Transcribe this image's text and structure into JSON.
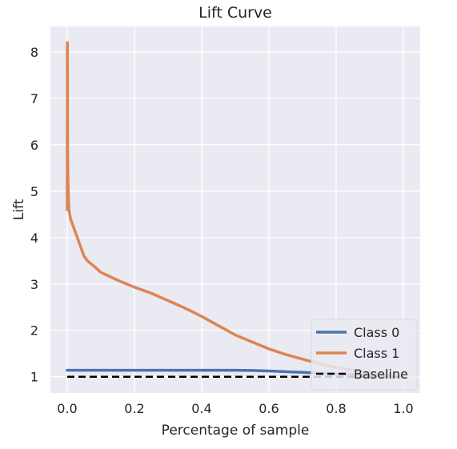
{
  "chart_data": {
    "type": "line",
    "title": "Lift Curve",
    "xlabel": "Percentage of sample",
    "ylabel": "Lift",
    "xlim": [
      -0.05,
      1.05
    ],
    "ylim": [
      0.65,
      8.55
    ],
    "xticks": [
      0.0,
      0.2,
      0.4,
      0.6,
      0.8,
      1.0
    ],
    "xtick_labels": [
      "0.0",
      "0.2",
      "0.4",
      "0.6",
      "0.8",
      "1.0"
    ],
    "yticks": [
      1,
      2,
      3,
      4,
      5,
      6,
      7,
      8
    ],
    "ytick_labels": [
      "1",
      "2",
      "3",
      "4",
      "5",
      "6",
      "7",
      "8"
    ],
    "grid": true,
    "legend_position": "bottom-right",
    "background": "#EAEAF2",
    "series": [
      {
        "name": "Class 0",
        "color": "#4C72B0",
        "style": "solid",
        "x": [
          0.0,
          0.1,
          0.2,
          0.3,
          0.4,
          0.5,
          0.55,
          0.6,
          0.65,
          0.7,
          0.75,
          0.8,
          0.85,
          0.9,
          0.95,
          1.0
        ],
        "y": [
          1.14,
          1.14,
          1.14,
          1.14,
          1.14,
          1.14,
          1.135,
          1.125,
          1.11,
          1.095,
          1.08,
          1.065,
          1.05,
          1.035,
          1.015,
          1.0
        ]
      },
      {
        "name": "Class 1",
        "color": "#DD8452",
        "style": "solid",
        "x": [
          0.0,
          0.0005,
          0.001,
          0.0015,
          0.002,
          0.003,
          0.004,
          0.005,
          0.01,
          0.02,
          0.03,
          0.04,
          0.05,
          0.06,
          0.08,
          0.1,
          0.15,
          0.2,
          0.25,
          0.3,
          0.35,
          0.4,
          0.45,
          0.5,
          0.55,
          0.6,
          0.65,
          0.7,
          0.75,
          0.8,
          0.85,
          0.9,
          0.95,
          1.0
        ],
        "y": [
          4.6,
          8.2,
          6.5,
          5.6,
          5.3,
          5.0,
          4.8,
          4.6,
          4.4,
          4.2,
          4.0,
          3.8,
          3.6,
          3.5,
          3.38,
          3.25,
          3.08,
          2.93,
          2.8,
          2.64,
          2.48,
          2.3,
          2.1,
          1.9,
          1.75,
          1.6,
          1.48,
          1.38,
          1.28,
          1.2,
          1.14,
          1.08,
          1.04,
          1.0
        ]
      },
      {
        "name": "Baseline",
        "color": "#000000",
        "style": "dashed",
        "x": [
          0.0,
          1.0
        ],
        "y": [
          1.0,
          1.0
        ]
      }
    ]
  }
}
